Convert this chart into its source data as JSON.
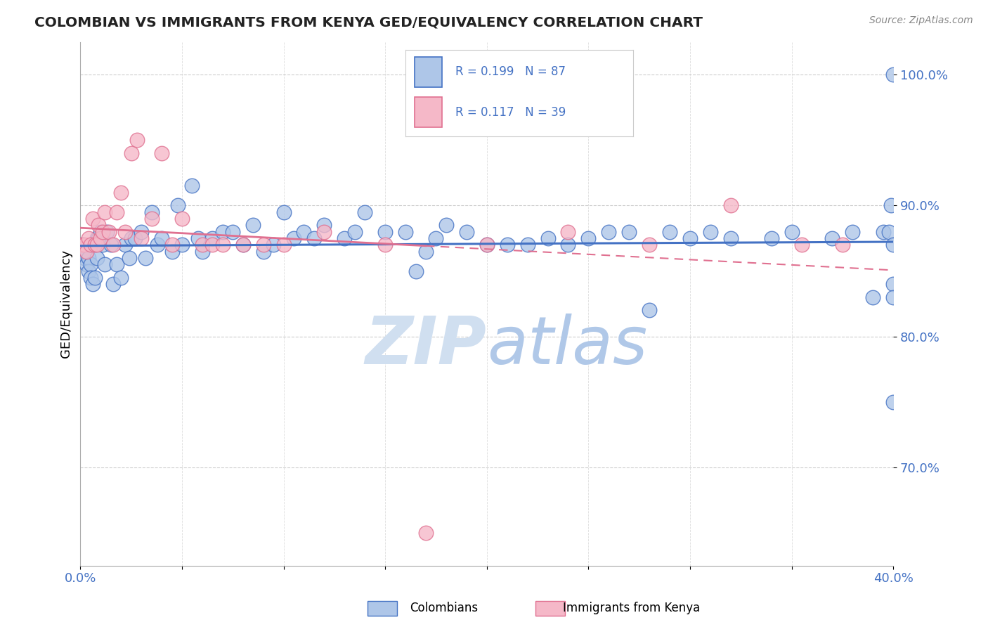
{
  "title": "COLOMBIAN VS IMMIGRANTS FROM KENYA GED/EQUIVALENCY CORRELATION CHART",
  "source": "Source: ZipAtlas.com",
  "ylabel": "GED/Equivalency",
  "xlim": [
    0.0,
    0.4
  ],
  "ylim": [
    0.625,
    1.025
  ],
  "y_ticks": [
    0.7,
    0.8,
    0.9,
    1.0
  ],
  "y_tick_labels": [
    "70.0%",
    "80.0%",
    "90.0%",
    "100.0%"
  ],
  "colombian_R": 0.199,
  "colombian_N": 87,
  "kenya_R": 0.117,
  "kenya_N": 39,
  "colombian_color": "#aec6e8",
  "kenya_color": "#f5b8c8",
  "trend_colombian_color": "#4472c4",
  "trend_kenya_color": "#e07090",
  "watermark_color": "#d0dff0",
  "colombian_x": [
    0.001,
    0.002,
    0.002,
    0.003,
    0.003,
    0.004,
    0.004,
    0.005,
    0.005,
    0.006,
    0.006,
    0.007,
    0.007,
    0.008,
    0.008,
    0.009,
    0.01,
    0.011,
    0.012,
    0.013,
    0.015,
    0.016,
    0.018,
    0.02,
    0.022,
    0.024,
    0.025,
    0.027,
    0.03,
    0.032,
    0.035,
    0.038,
    0.04,
    0.045,
    0.048,
    0.05,
    0.055,
    0.058,
    0.06,
    0.065,
    0.07,
    0.075,
    0.08,
    0.085,
    0.09,
    0.095,
    0.1,
    0.105,
    0.11,
    0.115,
    0.12,
    0.13,
    0.135,
    0.14,
    0.15,
    0.16,
    0.165,
    0.17,
    0.175,
    0.18,
    0.19,
    0.2,
    0.21,
    0.22,
    0.23,
    0.24,
    0.25,
    0.26,
    0.27,
    0.28,
    0.29,
    0.3,
    0.31,
    0.32,
    0.34,
    0.35,
    0.37,
    0.38,
    0.39,
    0.395,
    0.398,
    0.399,
    0.4,
    0.4,
    0.4,
    0.4,
    0.4
  ],
  "colombian_y": [
    0.87,
    0.865,
    0.86,
    0.855,
    0.865,
    0.86,
    0.85,
    0.855,
    0.845,
    0.87,
    0.84,
    0.845,
    0.87,
    0.86,
    0.875,
    0.875,
    0.88,
    0.87,
    0.855,
    0.88,
    0.87,
    0.84,
    0.855,
    0.845,
    0.87,
    0.86,
    0.875,
    0.875,
    0.88,
    0.86,
    0.895,
    0.87,
    0.875,
    0.865,
    0.9,
    0.87,
    0.915,
    0.875,
    0.865,
    0.875,
    0.88,
    0.88,
    0.87,
    0.885,
    0.865,
    0.87,
    0.895,
    0.875,
    0.88,
    0.875,
    0.885,
    0.875,
    0.88,
    0.895,
    0.88,
    0.88,
    0.85,
    0.865,
    0.875,
    0.885,
    0.88,
    0.87,
    0.87,
    0.87,
    0.875,
    0.87,
    0.875,
    0.88,
    0.88,
    0.82,
    0.88,
    0.875,
    0.88,
    0.875,
    0.875,
    0.88,
    0.875,
    0.88,
    0.83,
    0.88,
    0.88,
    0.9,
    0.84,
    0.75,
    0.83,
    0.87,
    1.0
  ],
  "kenya_x": [
    0.001,
    0.002,
    0.003,
    0.004,
    0.005,
    0.006,
    0.007,
    0.008,
    0.009,
    0.01,
    0.011,
    0.012,
    0.014,
    0.016,
    0.018,
    0.02,
    0.022,
    0.025,
    0.028,
    0.03,
    0.035,
    0.04,
    0.045,
    0.05,
    0.06,
    0.065,
    0.07,
    0.08,
    0.09,
    0.1,
    0.12,
    0.15,
    0.17,
    0.2,
    0.24,
    0.28,
    0.32,
    0.355,
    0.375
  ],
  "kenya_y": [
    0.87,
    0.87,
    0.865,
    0.875,
    0.87,
    0.89,
    0.87,
    0.87,
    0.885,
    0.875,
    0.88,
    0.895,
    0.88,
    0.87,
    0.895,
    0.91,
    0.88,
    0.94,
    0.95,
    0.875,
    0.89,
    0.94,
    0.87,
    0.89,
    0.87,
    0.87,
    0.87,
    0.87,
    0.87,
    0.87,
    0.88,
    0.87,
    0.65,
    0.87,
    0.88,
    0.87,
    0.9,
    0.87,
    0.87
  ]
}
